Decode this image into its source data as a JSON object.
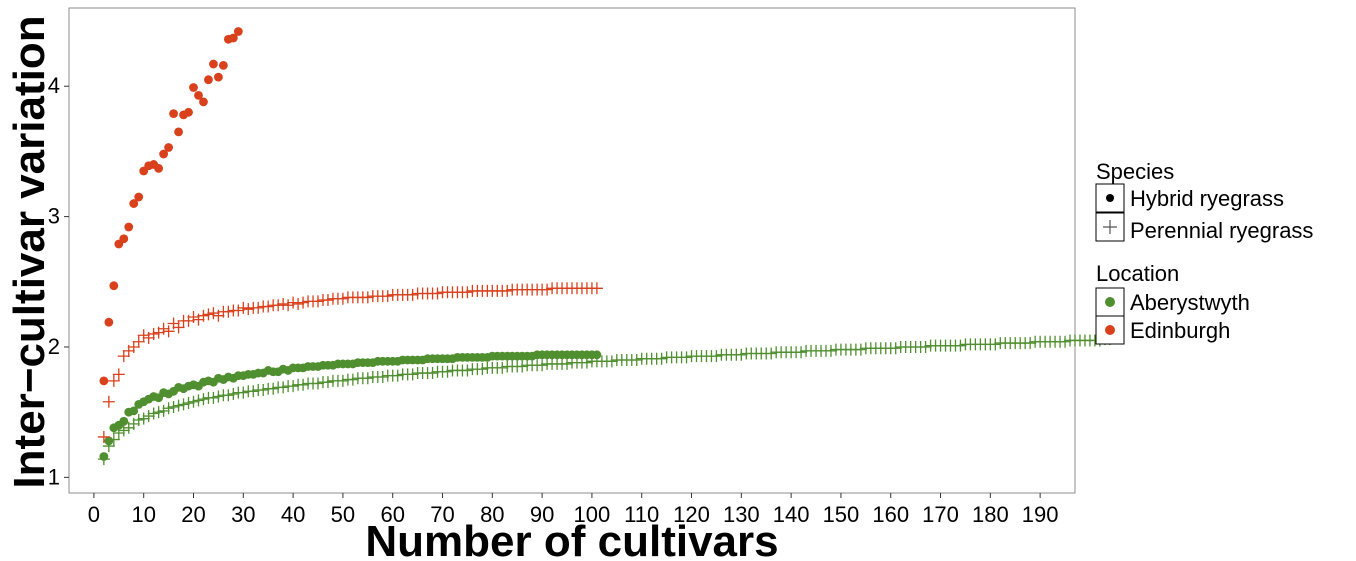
{
  "chart_data": {
    "type": "scatter",
    "xlabel": "Number of cultivars",
    "ylabel": "Inter−cultivar variation",
    "xlim": [
      -5,
      197
    ],
    "ylim": [
      0.88,
      4.6
    ],
    "xticks": [
      0,
      10,
      20,
      30,
      40,
      50,
      60,
      70,
      80,
      90,
      100,
      110,
      120,
      130,
      140,
      150,
      160,
      170,
      180,
      190
    ],
    "yticks": [
      1,
      2,
      3,
      4
    ],
    "grid": false,
    "legend_position": "right",
    "colors": {
      "Aberystwyth": "#4f8f2f",
      "Edinburgh": "#d9401c"
    },
    "legend": {
      "species_title": "Species",
      "species": [
        {
          "label": "Hybrid ryegrass",
          "shape": "circle"
        },
        {
          "label": "Perennial ryegrass",
          "shape": "plus"
        }
      ],
      "location_title": "Location",
      "locations": [
        {
          "label": "Aberystwyth",
          "color": "#4f8f2f"
        },
        {
          "label": "Edinburgh",
          "color": "#d9401c"
        }
      ]
    },
    "series": [
      {
        "species": "Hybrid ryegrass",
        "location": "Edinburgh",
        "shape": "circle",
        "x": [
          2,
          3,
          4,
          5,
          6,
          7,
          8,
          9,
          10,
          11,
          12,
          13,
          14,
          15,
          16,
          17,
          18,
          19,
          20,
          21,
          22,
          23,
          24,
          25,
          26,
          27,
          28,
          29
        ],
        "y": [
          1.74,
          2.19,
          2.47,
          2.79,
          2.83,
          2.92,
          3.1,
          3.15,
          3.35,
          3.39,
          3.4,
          3.37,
          3.48,
          3.53,
          3.79,
          3.65,
          3.78,
          3.8,
          3.99,
          3.93,
          3.88,
          4.05,
          4.17,
          4.07,
          4.16,
          4.36,
          4.37,
          4.42
        ]
      },
      {
        "species": "Perennial ryegrass",
        "location": "Edinburgh",
        "shape": "plus",
        "x_start": 2,
        "x_step": 1,
        "y": [
          1.31,
          1.58,
          1.74,
          1.79,
          1.93,
          1.97,
          2.0,
          2.04,
          2.09,
          2.07,
          2.1,
          2.11,
          2.14,
          2.12,
          2.18,
          2.15,
          2.2,
          2.2,
          2.23,
          2.21,
          2.24,
          2.25,
          2.26,
          2.24,
          2.27,
          2.27,
          2.28,
          2.28,
          2.3,
          2.29,
          2.3,
          2.3,
          2.31,
          2.31,
          2.32,
          2.32,
          2.33,
          2.32,
          2.34,
          2.33,
          2.34,
          2.35,
          2.35,
          2.35,
          2.36,
          2.36,
          2.37,
          2.37,
          2.37,
          2.38,
          2.38,
          2.38,
          2.38,
          2.38,
          2.39,
          2.39,
          2.39,
          2.39,
          2.4,
          2.4,
          2.4,
          2.4,
          2.4,
          2.41,
          2.41,
          2.41,
          2.41,
          2.41,
          2.42,
          2.42,
          2.42,
          2.42,
          2.42,
          2.42,
          2.43,
          2.43,
          2.43,
          2.43,
          2.43,
          2.43,
          2.43,
          2.43,
          2.44,
          2.44,
          2.44,
          2.44,
          2.44,
          2.44,
          2.44,
          2.44,
          2.45,
          2.45,
          2.45,
          2.45,
          2.45,
          2.45,
          2.45,
          2.45,
          2.45,
          2.45
        ]
      },
      {
        "species": "Hybrid ryegrass",
        "location": "Aberystwyth",
        "shape": "circle",
        "x_start": 2,
        "x_step": 1,
        "y": [
          1.16,
          1.28,
          1.38,
          1.4,
          1.43,
          1.5,
          1.51,
          1.56,
          1.58,
          1.6,
          1.62,
          1.61,
          1.65,
          1.64,
          1.66,
          1.69,
          1.68,
          1.7,
          1.71,
          1.7,
          1.73,
          1.74,
          1.73,
          1.76,
          1.75,
          1.77,
          1.76,
          1.78,
          1.78,
          1.79,
          1.79,
          1.8,
          1.8,
          1.82,
          1.81,
          1.81,
          1.83,
          1.82,
          1.84,
          1.84,
          1.84,
          1.85,
          1.85,
          1.85,
          1.86,
          1.86,
          1.86,
          1.87,
          1.87,
          1.87,
          1.87,
          1.88,
          1.88,
          1.88,
          1.88,
          1.89,
          1.89,
          1.89,
          1.89,
          1.89,
          1.9,
          1.9,
          1.9,
          1.9,
          1.9,
          1.91,
          1.91,
          1.91,
          1.91,
          1.91,
          1.91,
          1.92,
          1.92,
          1.92,
          1.92,
          1.92,
          1.92,
          1.92,
          1.93,
          1.93,
          1.93,
          1.93,
          1.93,
          1.93,
          1.93,
          1.93,
          1.93,
          1.94,
          1.94,
          1.94,
          1.94,
          1.94,
          1.94,
          1.94,
          1.94,
          1.94,
          1.94,
          1.94,
          1.94,
          1.94
        ]
      },
      {
        "species": "Perennial ryegrass",
        "location": "Aberystwyth",
        "shape": "plus",
        "x_start": 2,
        "x_step": 1,
        "y": [
          1.14,
          1.24,
          1.29,
          1.34,
          1.36,
          1.38,
          1.41,
          1.44,
          1.45,
          1.47,
          1.49,
          1.5,
          1.51,
          1.53,
          1.54,
          1.55,
          1.56,
          1.57,
          1.58,
          1.59,
          1.6,
          1.61,
          1.61,
          1.62,
          1.63,
          1.63,
          1.64,
          1.65,
          1.65,
          1.66,
          1.66,
          1.67,
          1.67,
          1.68,
          1.68,
          1.69,
          1.69,
          1.7,
          1.7,
          1.71,
          1.71,
          1.72,
          1.72,
          1.72,
          1.73,
          1.73,
          1.74,
          1.74,
          1.74,
          1.75,
          1.75,
          1.76,
          1.76,
          1.76,
          1.77,
          1.77,
          1.77,
          1.78,
          1.78,
          1.78,
          1.79,
          1.79,
          1.79,
          1.8,
          1.8,
          1.8,
          1.8,
          1.81,
          1.81,
          1.81,
          1.82,
          1.82,
          1.82,
          1.82,
          1.83,
          1.83,
          1.83,
          1.84,
          1.84,
          1.84,
          1.84,
          1.85,
          1.85,
          1.85,
          1.85,
          1.86,
          1.86,
          1.86,
          1.86,
          1.87,
          1.87,
          1.87,
          1.87,
          1.87,
          1.88,
          1.88,
          1.88,
          1.88,
          1.89,
          1.89,
          1.89,
          1.89,
          1.89,
          1.9,
          1.9,
          1.9,
          1.9,
          1.9,
          1.91,
          1.91,
          1.91,
          1.91,
          1.91,
          1.92,
          1.92,
          1.92,
          1.92,
          1.92,
          1.93,
          1.93,
          1.93,
          1.93,
          1.93,
          1.93,
          1.94,
          1.94,
          1.94,
          1.94,
          1.94,
          1.95,
          1.95,
          1.95,
          1.95,
          1.95,
          1.95,
          1.96,
          1.96,
          1.96,
          1.96,
          1.96,
          1.96,
          1.97,
          1.97,
          1.97,
          1.97,
          1.97,
          1.97,
          1.98,
          1.98,
          1.98,
          1.98,
          1.98,
          1.98,
          1.99,
          1.99,
          1.99,
          1.99,
          1.99,
          1.99,
          1.99,
          2.0,
          2.0,
          2.0,
          2.0,
          2.0,
          2.0,
          2.01,
          2.01,
          2.01,
          2.01,
          2.01,
          2.01,
          2.01,
          2.02,
          2.02,
          2.02,
          2.02,
          2.02,
          2.02,
          2.02,
          2.03,
          2.03,
          2.03,
          2.03,
          2.03,
          2.03,
          2.03,
          2.04,
          2.04,
          2.04,
          2.04,
          2.04,
          2.04,
          2.04,
          2.05,
          2.05,
          2.05,
          2.05,
          2.05,
          2.05,
          2.05,
          2.06,
          2.06
        ]
      }
    ]
  }
}
